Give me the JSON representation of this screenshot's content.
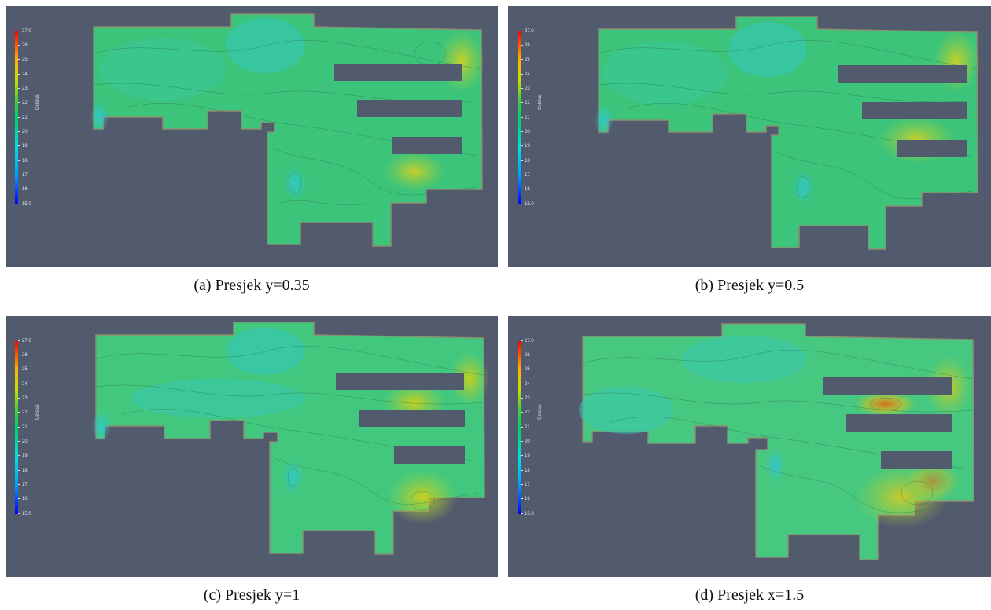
{
  "colorbar": {
    "title": "Celsius",
    "ticks": [
      "27.0",
      "26",
      "25",
      "24",
      "23",
      "22",
      "21",
      "20",
      "19",
      "18",
      "17",
      "16",
      "15.0"
    ],
    "range": [
      15.0,
      27.0
    ],
    "gradient_colors": [
      "#0000ff",
      "#00a0ff",
      "#00e0e0",
      "#00d060",
      "#40d040",
      "#c8e000",
      "#ffb000",
      "#ff0000"
    ]
  },
  "background_color": "#525a6e",
  "panels": [
    {
      "id": "a",
      "caption": "(a) Presjek y=0.35",
      "dominant_color": "#3cc878",
      "hot_color": "#b8d830"
    },
    {
      "id": "b",
      "caption": "(b) Presjek y=0.5",
      "dominant_color": "#3cc878",
      "hot_color": "#c8d830"
    },
    {
      "id": "c",
      "caption": "(c) Presjek y=1",
      "dominant_color": "#40c87c",
      "hot_color": "#c8d820"
    },
    {
      "id": "d",
      "caption": "(d) Presjek x=1.5",
      "dominant_color": "#44c880",
      "hot_color": "#e07018"
    }
  ]
}
